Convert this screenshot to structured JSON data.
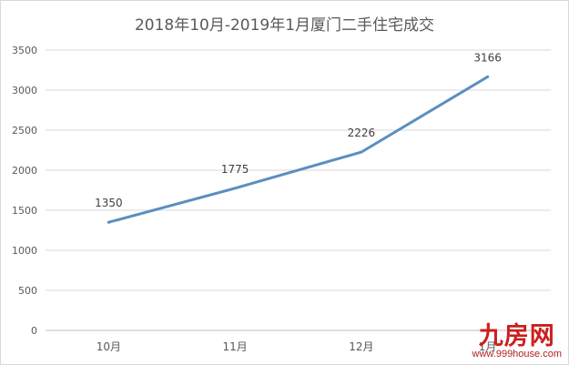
{
  "chart_data": {
    "type": "line",
    "title": "2018年10月-2019年1月厦门二手住宅成交",
    "categories": [
      "10月",
      "11月",
      "12月",
      "1月"
    ],
    "series": [
      {
        "values": [
          1350,
          1775,
          2226,
          3166
        ]
      }
    ],
    "data_labels": [
      "1350",
      "1775",
      "2226",
      "3166"
    ],
    "yticks": [
      "0",
      "500",
      "1000",
      "1500",
      "2000",
      "2500",
      "3000",
      "3500"
    ],
    "ylim": [
      0,
      3500
    ],
    "grid": true,
    "legend": "none",
    "line_color": "#5b8ec1"
  },
  "watermark": {
    "logo": "九房网",
    "url": "www.999house.com"
  }
}
